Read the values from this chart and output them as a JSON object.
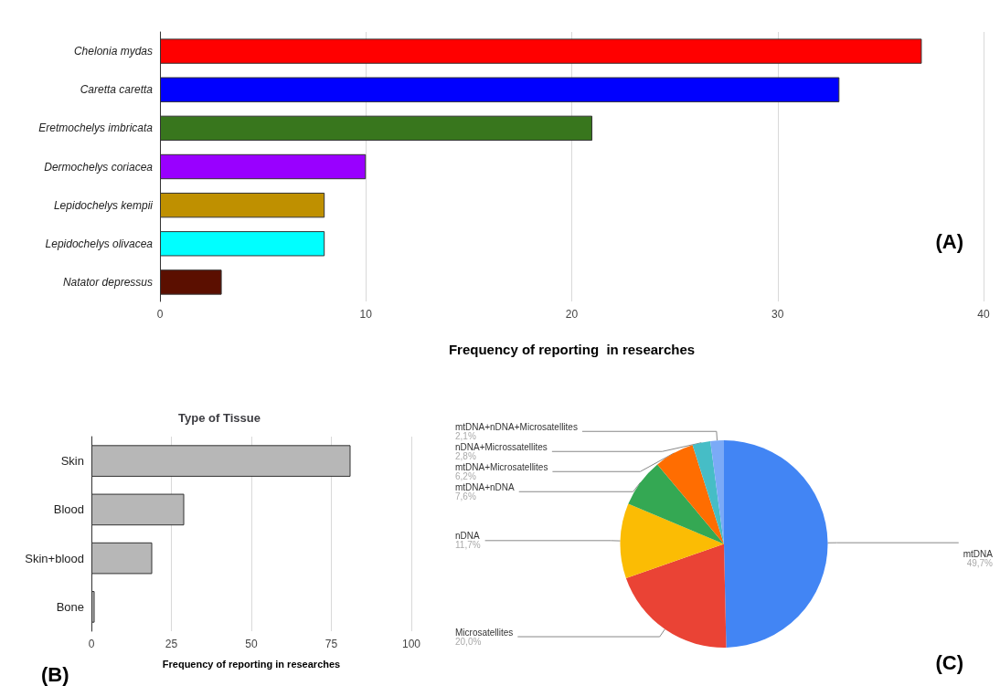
{
  "chart_data": [
    {
      "type": "bar",
      "orientation": "horizontal",
      "xlabel": "Frequency of reporting  in researches",
      "categories": [
        "Chelonia mydas",
        "Caretta caretta",
        "Eretmochelys imbricata",
        "Dermochelys coriacea",
        "Lepidochelys kempii",
        "Lepidochelys olivacea",
        "Natator depressus"
      ],
      "values": [
        37,
        33,
        21,
        10,
        8,
        8,
        3
      ],
      "colors": [
        "#ff0000",
        "#0000ff",
        "#38761d",
        "#9900ff",
        "#bf9000",
        "#00ffff",
        "#5b0f00"
      ],
      "xlim": [
        0,
        40
      ],
      "xticks": [
        0,
        10,
        20,
        30,
        40
      ],
      "grid": "x",
      "annotations": [
        "(A)"
      ]
    },
    {
      "type": "bar",
      "orientation": "horizontal",
      "title": "Type of Tissue",
      "xlabel": "Frequency of reporting in researches",
      "categories": [
        "Skin",
        "Blood",
        "Skin+blood",
        "Bone"
      ],
      "values": [
        81,
        29,
        19,
        1
      ],
      "color": "#b7b7b7",
      "xlim": [
        0,
        100
      ],
      "xticks": [
        0,
        25,
        50,
        75,
        100
      ],
      "grid": "x",
      "annotations": [
        "(B)"
      ]
    },
    {
      "type": "pie",
      "categories": [
        "mtDNA",
        "Microsatellites",
        "nDNA",
        "mtDNA+nDNA",
        "mtDNA+Microsatellites",
        "nDNA+Microssatellites",
        "mtDNA+nDNA+Microsatellites"
      ],
      "values": [
        49.7,
        20.0,
        11.7,
        7.6,
        6.2,
        2.8,
        2.1
      ],
      "value_labels": [
        "49,7%",
        "20,0%",
        "11,7%",
        "7,6%",
        "6,2%",
        "2,8%",
        "2,1%"
      ],
      "colors": [
        "#4285f4",
        "#ea4335",
        "#fbbc04",
        "#34a853",
        "#ff6d01",
        "#46bdc6",
        "#7baaf7"
      ],
      "annotations": [
        "(C)"
      ]
    }
  ]
}
